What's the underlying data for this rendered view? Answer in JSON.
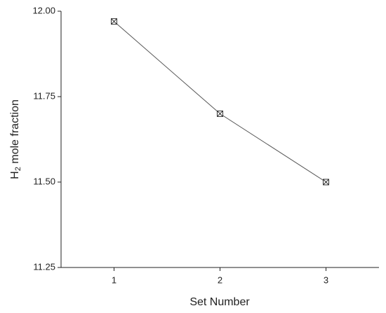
{
  "chart_data": {
    "type": "line",
    "x": [
      1,
      2,
      3
    ],
    "values": [
      11.97,
      11.7,
      11.5
    ],
    "color": "#555555",
    "xlabel": "Set Number",
    "ylabel": [
      "H",
      "2",
      " mole fraction"
    ],
    "xlim": [
      0.5,
      3.5
    ],
    "xticks": [
      1,
      2,
      3
    ],
    "ylim": [
      11.25,
      12.0
    ],
    "yticks": [
      {
        "value": 11.25,
        "label": "11.25"
      },
      {
        "value": 11.5,
        "label": "11.50"
      },
      {
        "value": 11.75,
        "label": "11.75"
      },
      {
        "value": 12.0,
        "label": "12.00"
      }
    ],
    "grid": false
  }
}
